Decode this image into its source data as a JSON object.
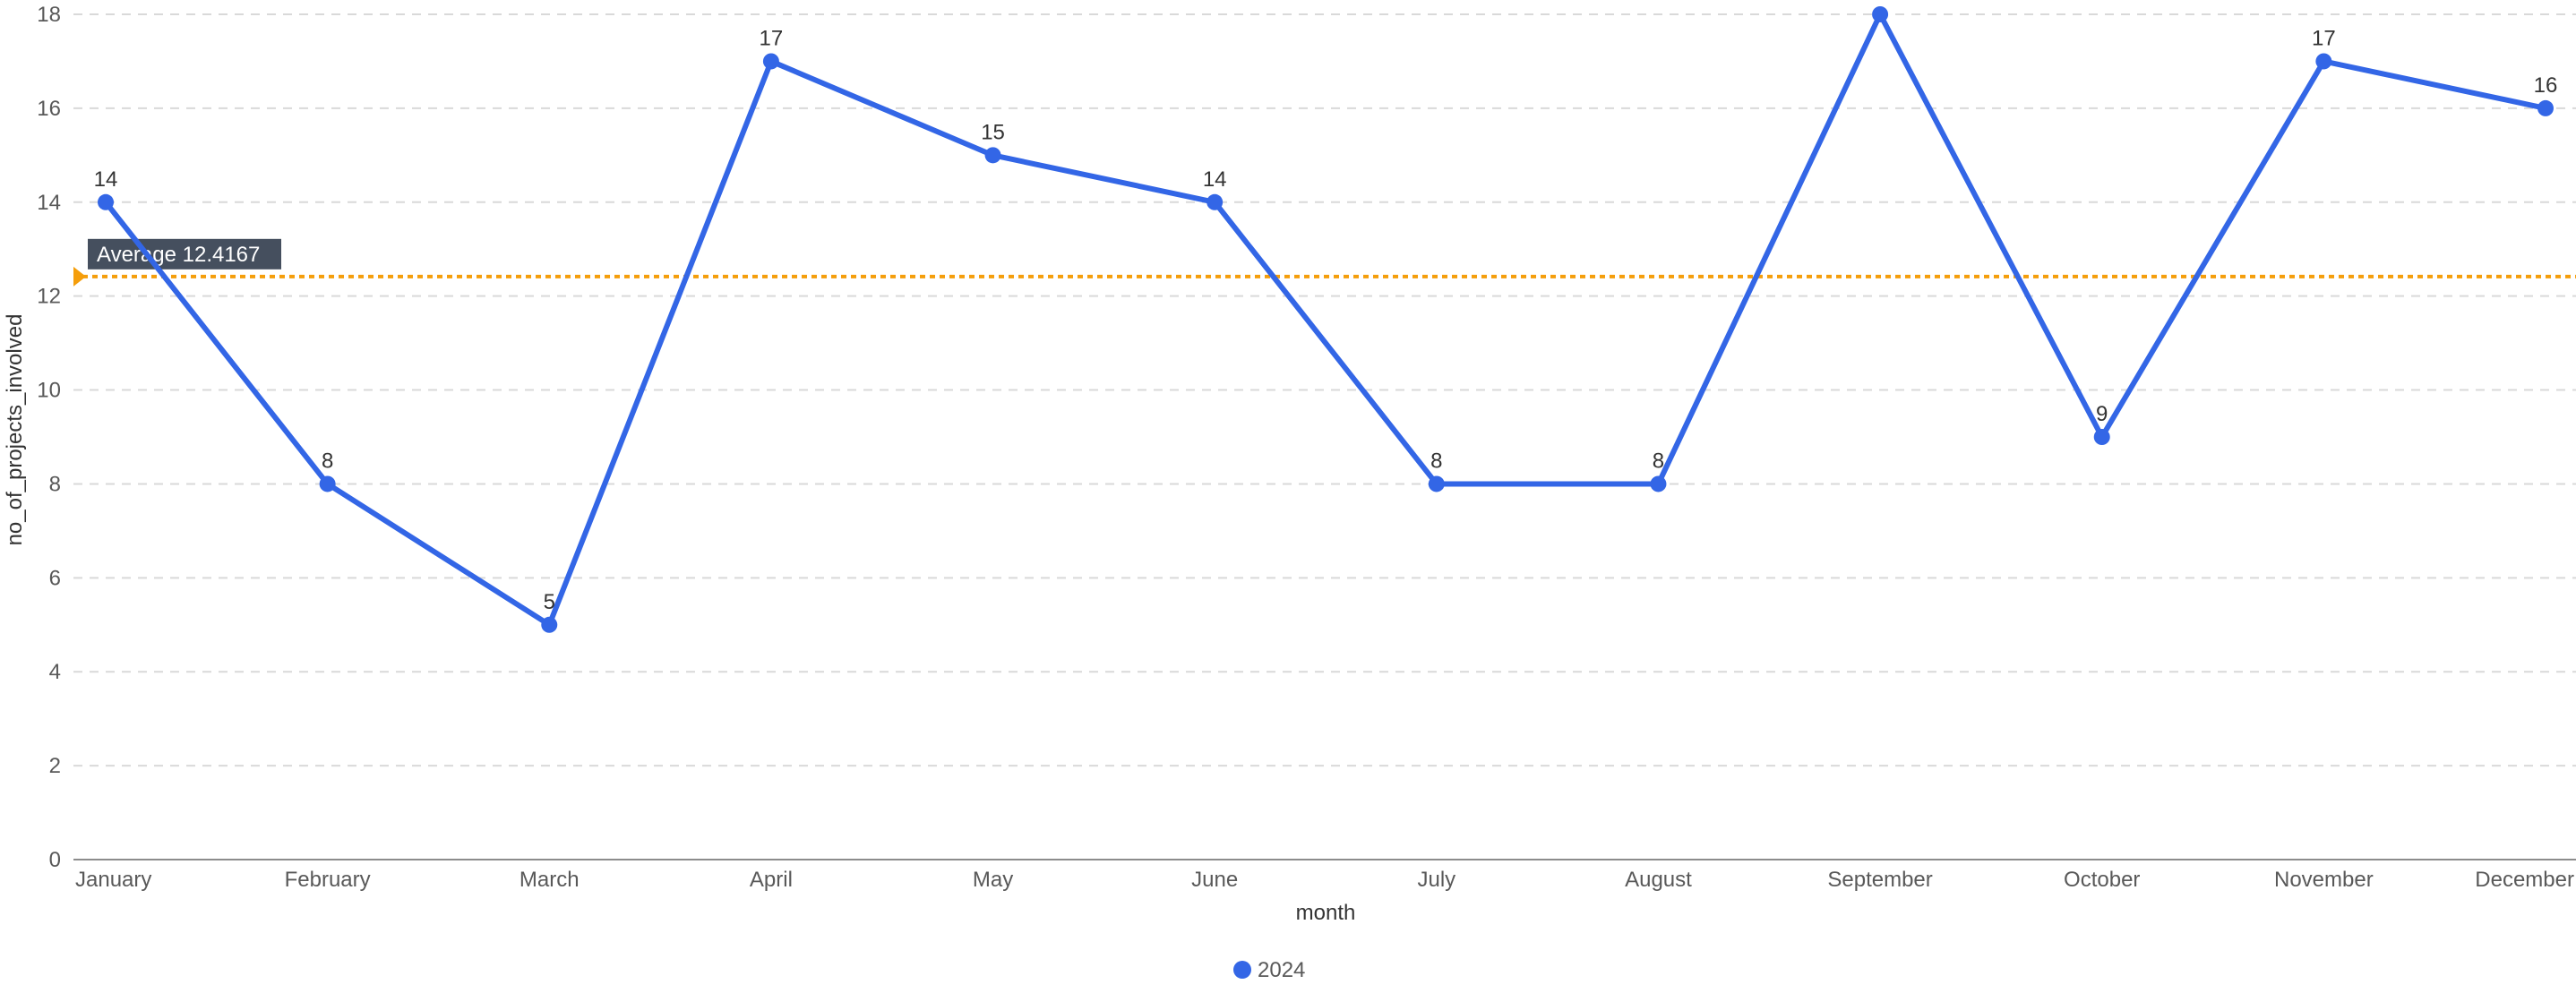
{
  "chart_data": {
    "type": "line",
    "categories": [
      "January",
      "February",
      "March",
      "April",
      "May",
      "June",
      "July",
      "August",
      "September",
      "October",
      "November",
      "December"
    ],
    "series": [
      {
        "name": "2024",
        "values": [
          14,
          8,
          5,
          17,
          15,
          14,
          8,
          8,
          18,
          9,
          17,
          16
        ],
        "color": "#3366e6"
      }
    ],
    "xlabel": "month",
    "ylabel": "no_of_projects_involved",
    "ylim": [
      0,
      18
    ],
    "yticks": [
      0,
      2,
      4,
      6,
      8,
      10,
      12,
      14,
      16,
      18
    ],
    "grid": true,
    "data_labels": true,
    "legend_position": "bottom-center",
    "reference_line": {
      "label": "Average 12.4167",
      "value": 12.4167,
      "color": "#f59e0b"
    }
  }
}
